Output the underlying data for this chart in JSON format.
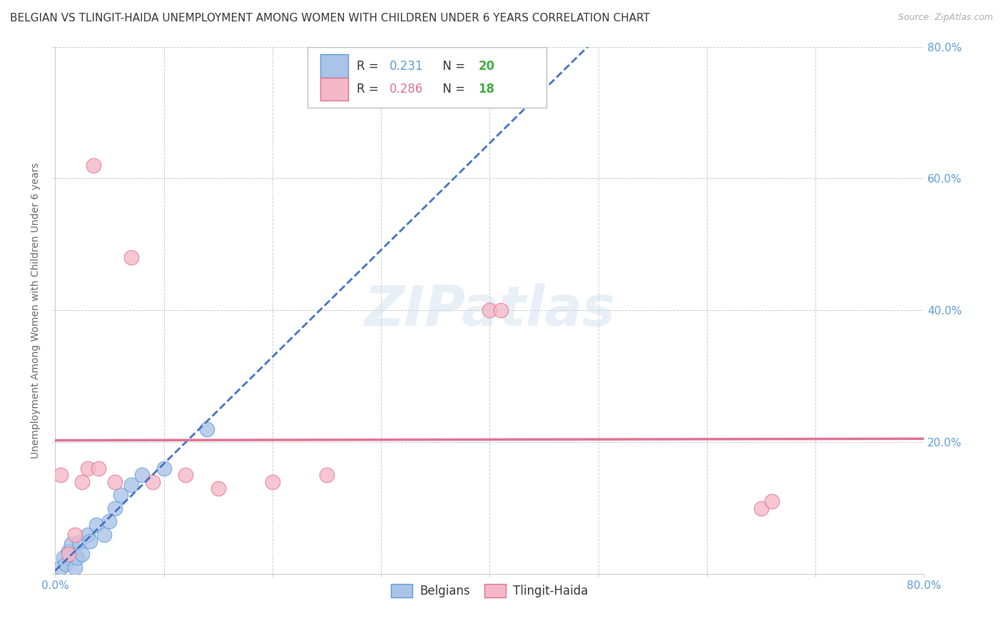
{
  "title": "BELGIAN VS TLINGIT-HAIDA UNEMPLOYMENT AMONG WOMEN WITH CHILDREN UNDER 6 YEARS CORRELATION CHART",
  "source": "Source: ZipAtlas.com",
  "ylabel": "Unemployment Among Women with Children Under 6 years",
  "xlim": [
    0.0,
    0.8
  ],
  "ylim": [
    0.0,
    0.8
  ],
  "xticks": [
    0.0,
    0.1,
    0.2,
    0.3,
    0.4,
    0.5,
    0.6,
    0.7,
    0.8
  ],
  "yticks": [
    0.0,
    0.2,
    0.4,
    0.6,
    0.8
  ],
  "xtick_labels_left": [
    "0.0%",
    "",
    "",
    "",
    "",
    "",
    "",
    "",
    "80.0%"
  ],
  "ytick_labels_right": [
    "",
    "20.0%",
    "40.0%",
    "60.0%",
    "80.0%"
  ],
  "belgian_x": [
    0.005,
    0.008,
    0.01,
    0.012,
    0.015,
    0.018,
    0.02,
    0.022,
    0.025,
    0.03,
    0.032,
    0.038,
    0.045,
    0.05,
    0.055,
    0.06,
    0.07,
    0.08,
    0.1,
    0.14
  ],
  "belgian_y": [
    0.01,
    0.025,
    0.015,
    0.035,
    0.045,
    0.01,
    0.025,
    0.048,
    0.03,
    0.06,
    0.05,
    0.075,
    0.06,
    0.08,
    0.1,
    0.12,
    0.135,
    0.15,
    0.16,
    0.22
  ],
  "tlingit_x": [
    0.005,
    0.012,
    0.018,
    0.025,
    0.03,
    0.035,
    0.04,
    0.055,
    0.07,
    0.09,
    0.12,
    0.15,
    0.2,
    0.25,
    0.4,
    0.41,
    0.65,
    0.66
  ],
  "tlingit_y": [
    0.15,
    0.03,
    0.06,
    0.14,
    0.16,
    0.62,
    0.16,
    0.14,
    0.48,
    0.14,
    0.15,
    0.13,
    0.14,
    0.15,
    0.4,
    0.4,
    0.1,
    0.11
  ],
  "belgian_color": "#aac4e8",
  "tlingit_color": "#f5b8c8",
  "belgian_edge_color": "#5b9bd5",
  "tlingit_edge_color": "#e07090",
  "belgian_r": 0.231,
  "belgian_n": 20,
  "tlingit_r": 0.286,
  "tlingit_n": 18,
  "r_color_belgian": "#5b9bd5",
  "r_color_tlingit": "#e07090",
  "n_color_belgian": "#44aa44",
  "n_color_tlingit": "#44aa44",
  "trend_belgian_color": "#4472c4",
  "trend_tlingit_color": "#e07090",
  "watermark": "ZIPatlas",
  "background_color": "#ffffff",
  "grid_color": "#cccccc",
  "title_fontsize": 11,
  "axis_label_fontsize": 10,
  "tick_fontsize": 11
}
